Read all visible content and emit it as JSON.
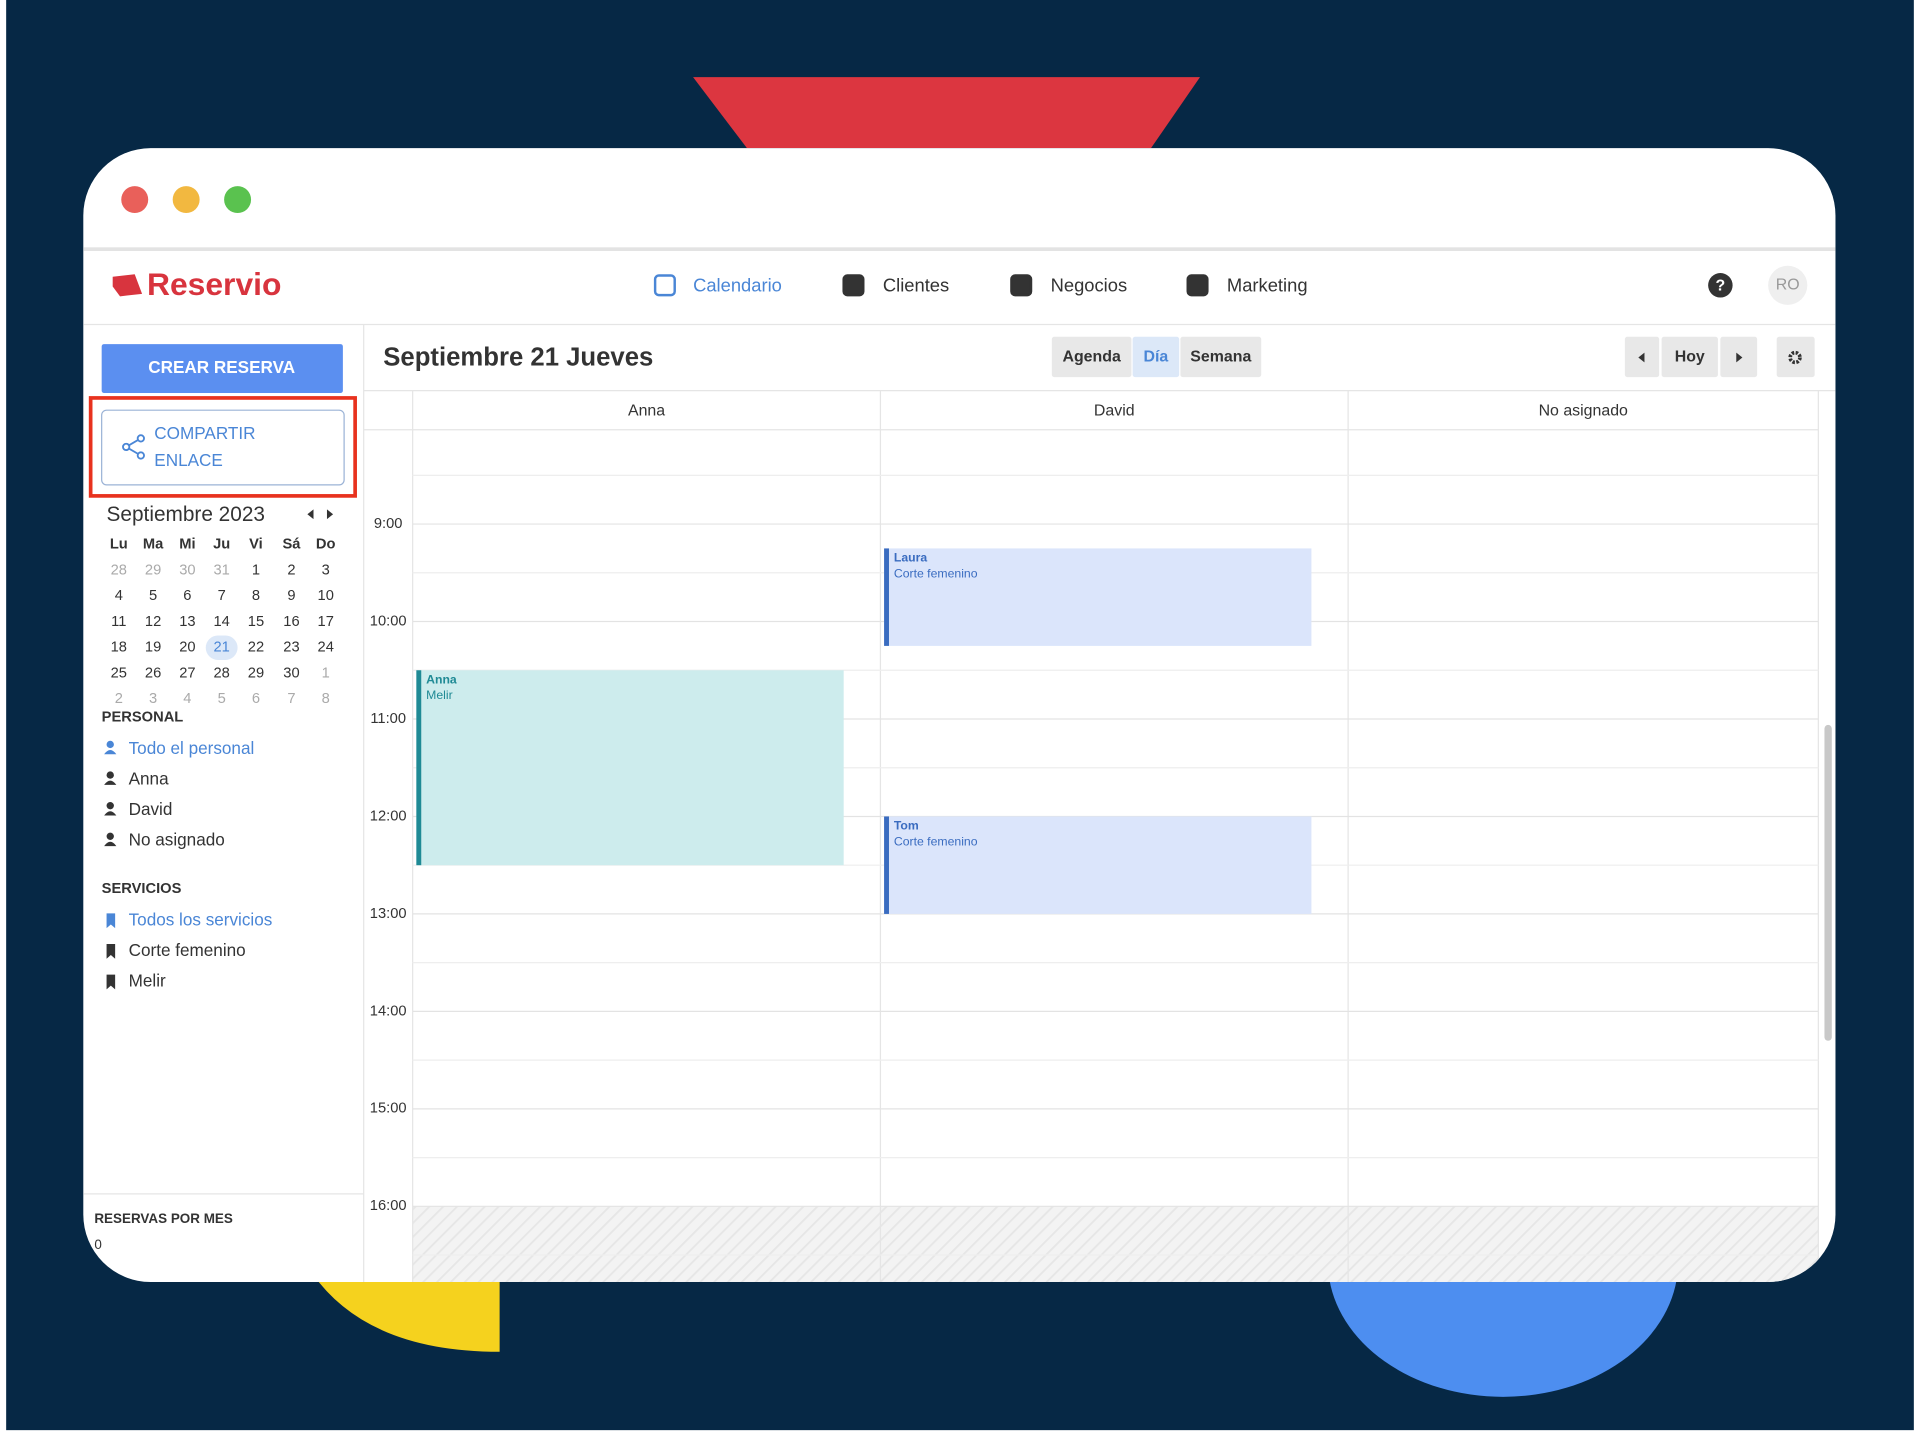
{
  "header": {
    "brand": "Reservio",
    "nav": [
      "Calendario",
      "Clientes",
      "Negocios",
      "Marketing"
    ],
    "help": "?",
    "avatar": "RO"
  },
  "sidebar": {
    "create": "CREAR RESERVA",
    "share": [
      "COMPARTIR",
      "ENLACE"
    ],
    "month": "Septiembre 2023",
    "weekdays": [
      "Lu",
      "Ma",
      "Mi",
      "Ju",
      "Vi",
      "Sá",
      "Do"
    ],
    "weeks": [
      [
        "28",
        "29",
        "30",
        "31",
        "1",
        "2",
        "3"
      ],
      [
        "4",
        "5",
        "6",
        "7",
        "8",
        "9",
        "10"
      ],
      [
        "11",
        "12",
        "13",
        "14",
        "15",
        "16",
        "17"
      ],
      [
        "18",
        "19",
        "20",
        "21",
        "22",
        "23",
        "24"
      ],
      [
        "25",
        "26",
        "27",
        "28",
        "29",
        "30",
        "1"
      ],
      [
        "2",
        "3",
        "4",
        "5",
        "6",
        "7",
        "8"
      ]
    ],
    "selected_day": "21",
    "staff_title": "PERSONAL",
    "staff": [
      "Todo el personal",
      "Anna",
      "David",
      "No asignado"
    ],
    "services_title": "SERVICIOS",
    "services": [
      "Todos los servicios",
      "Corte femenino",
      "Melir"
    ],
    "stats_title": "RESERVAS POR MES",
    "stats_value": "0"
  },
  "calendar": {
    "title": "Septiembre 21 Jueves",
    "views": [
      "Agenda",
      "Día",
      "Semana"
    ],
    "active_view": "Día",
    "today": "Hoy",
    "columns": [
      "Anna",
      "David",
      "No asignado"
    ],
    "hours": [
      "9:00",
      "10:00",
      "11:00",
      "12:00",
      "13:00",
      "14:00",
      "15:00",
      "16:00"
    ],
    "events": [
      {
        "name": "Anna",
        "service": "Melir"
      },
      {
        "name": "Laura",
        "service": "Corte femenino"
      },
      {
        "name": "Tom",
        "service": "Corte femenino"
      }
    ]
  }
}
